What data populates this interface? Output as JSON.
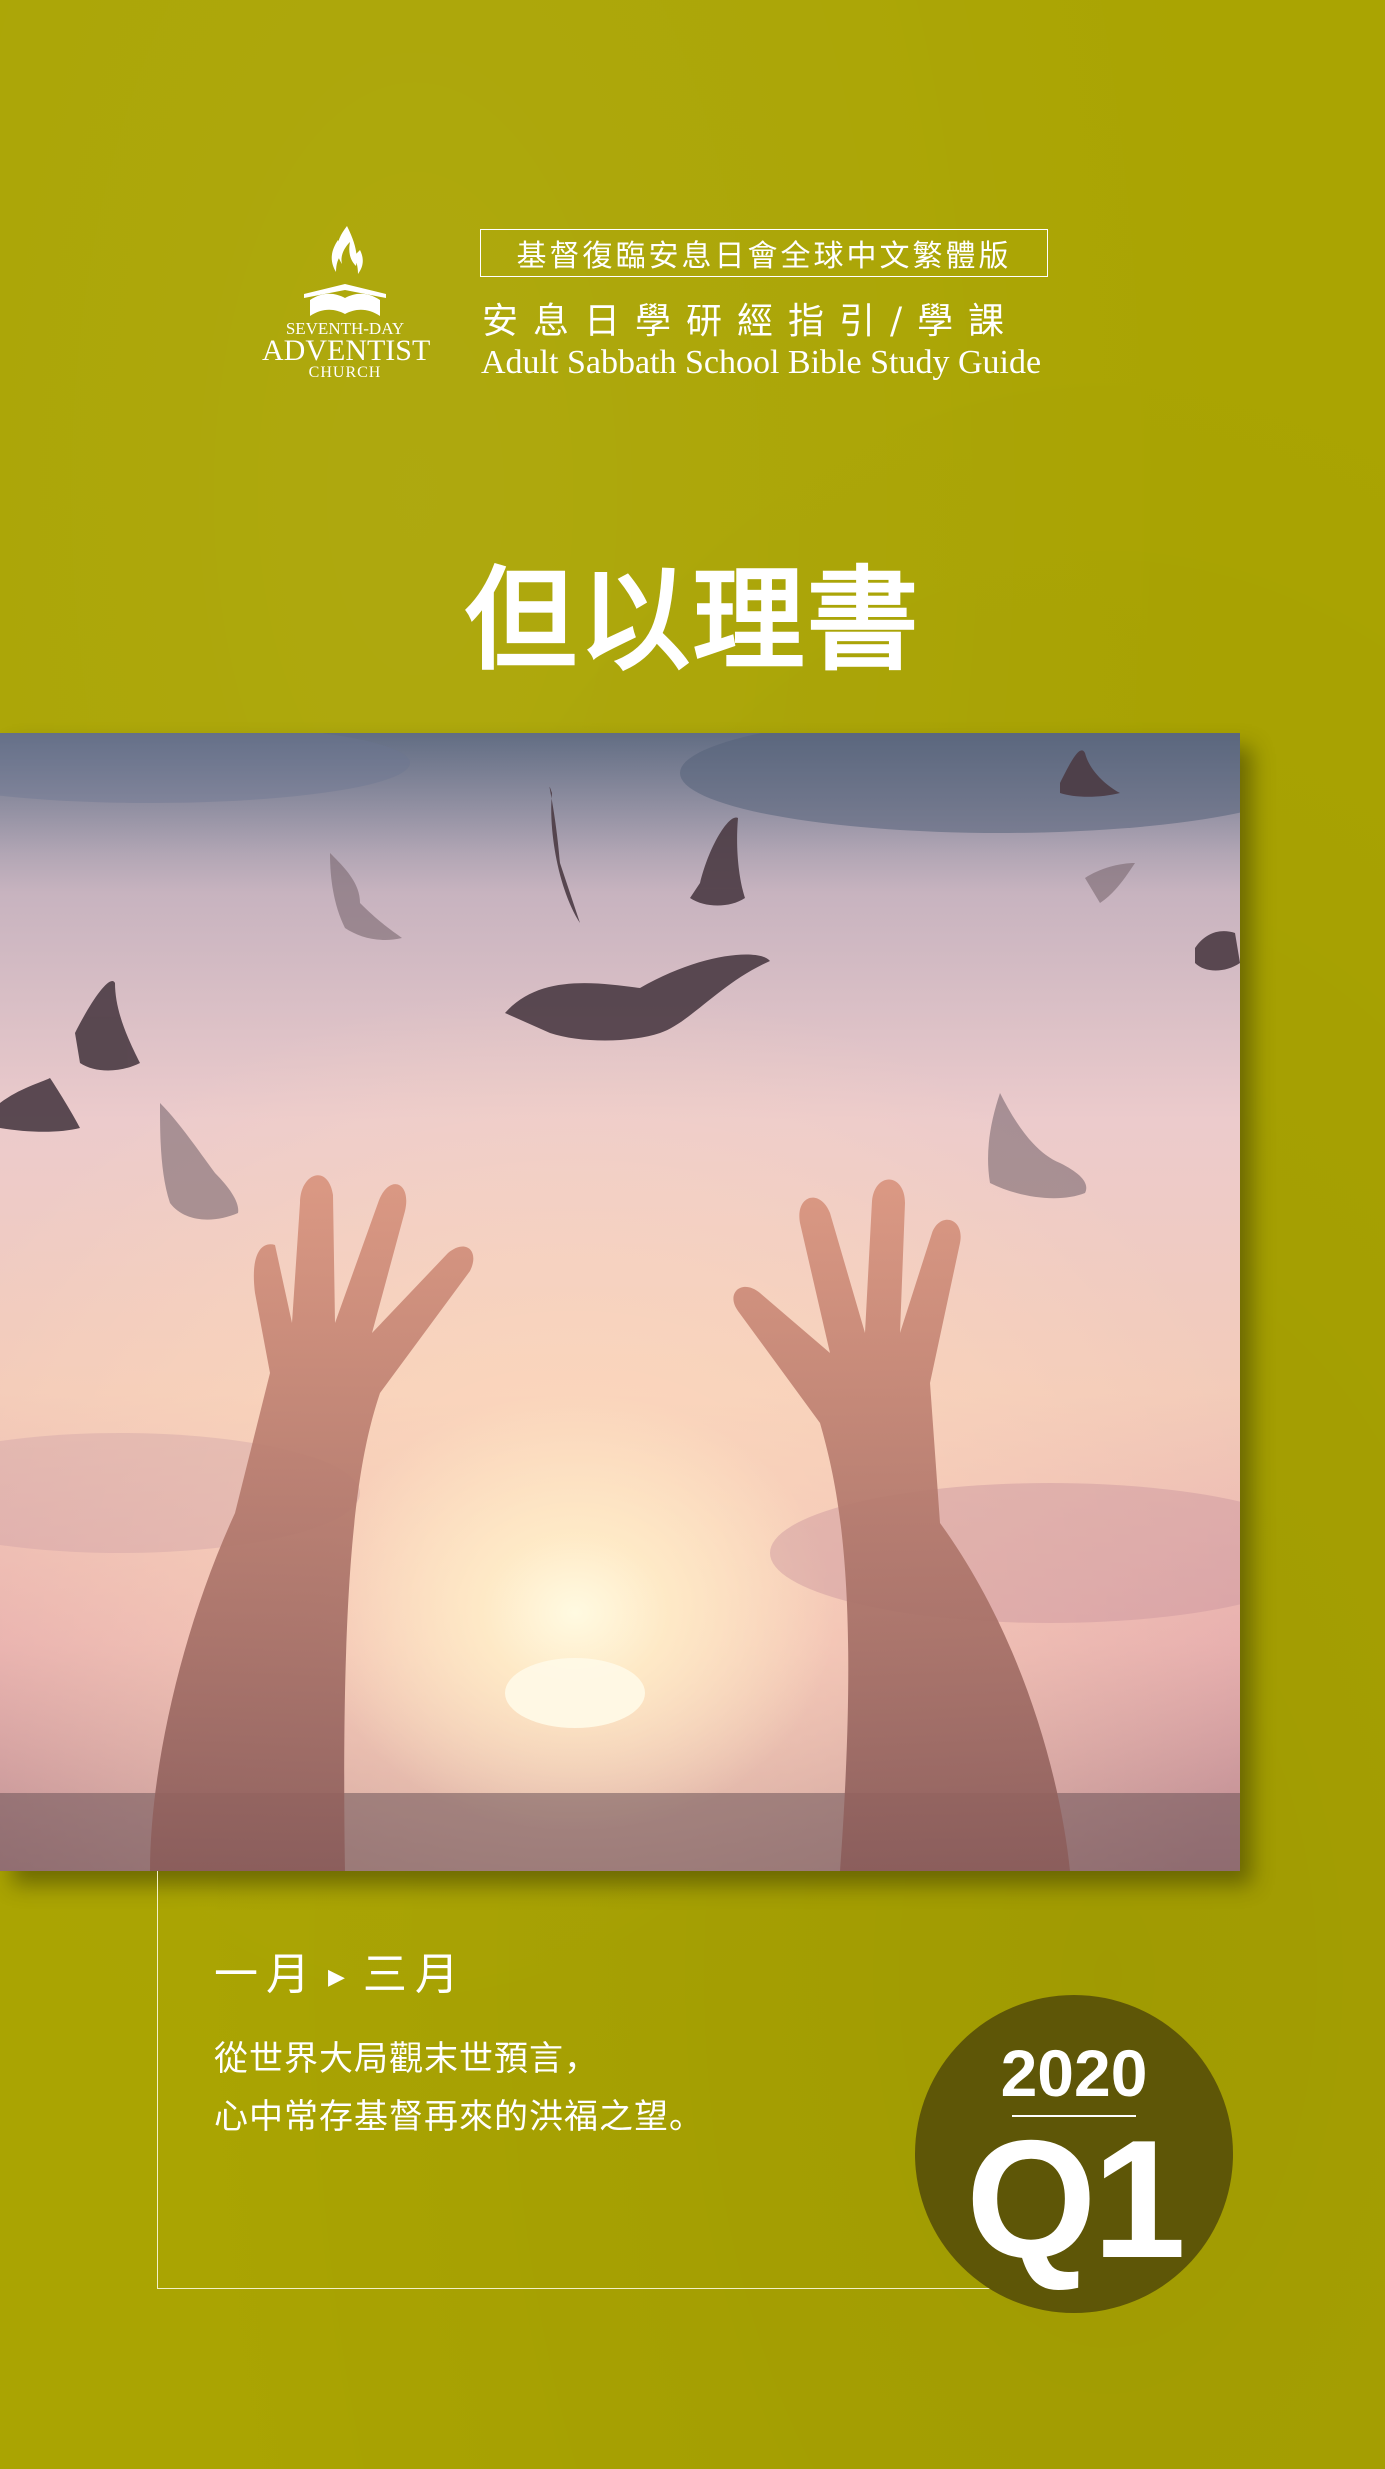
{
  "logo": {
    "line1": "SEVENTH-DAY",
    "line2": "ADVENTIST",
    "line3": "CHURCH",
    "icon": "flame-bible-icon"
  },
  "header": {
    "edition": "基督復臨安息日會全球中文繁體版",
    "subtitle_zh": "安息日學研經指引/學課",
    "subtitle_en": "Adult Sabbath School Bible Study Guide"
  },
  "title": "但以理書",
  "photo": {
    "description_icon": "hands-doves-sunset-photo"
  },
  "period": {
    "start": "一月",
    "end": "三月"
  },
  "tagline": {
    "line1": "從世界大局觀末世預言，",
    "line2": "心中常存基督再來的洪福之望。"
  },
  "badge": {
    "year": "2020",
    "quarter": "Q1"
  },
  "colors": {
    "background": "#aaa402",
    "badge": "#5e5607",
    "text": "#ffffff"
  }
}
